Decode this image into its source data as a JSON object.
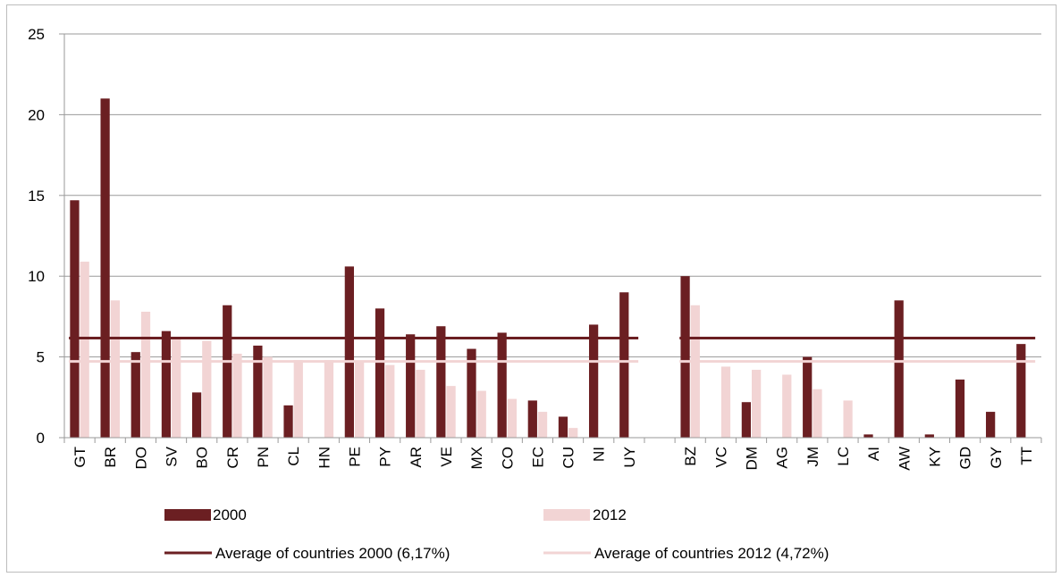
{
  "chart_data": {
    "type": "bar",
    "ylim": [
      0,
      25
    ],
    "yticks": [
      "0",
      "5",
      "10",
      "15",
      "20",
      "25"
    ],
    "grid": true,
    "legend_position": "bottom",
    "categories": [
      "GT",
      "BR",
      "DO",
      "SV",
      "BO",
      "CR",
      "PN",
      "CL",
      "HN",
      "PE",
      "PY",
      "AR",
      "VE",
      "MX",
      "CO",
      "EC",
      "CU",
      "NI",
      "UY",
      "",
      "BZ",
      "VC",
      "DM",
      "AG",
      "JM",
      "LC",
      "AI",
      "AW",
      "KY",
      "GD",
      "GY",
      "TT"
    ],
    "series": [
      {
        "name": "2000",
        "color": "#6b1f22",
        "values": [
          14.7,
          21.0,
          5.3,
          6.6,
          2.8,
          8.2,
          5.7,
          2.0,
          null,
          10.6,
          8.0,
          6.4,
          6.9,
          5.5,
          6.5,
          2.3,
          1.3,
          7.0,
          9.0,
          null,
          10.0,
          null,
          2.2,
          null,
          5.0,
          null,
          0.2,
          8.5,
          0.2,
          3.6,
          1.6,
          5.8
        ]
      },
      {
        "name": "2012",
        "color": "#f2d4d4",
        "values": [
          10.9,
          8.5,
          7.8,
          6.2,
          6.0,
          5.2,
          5.0,
          4.8,
          4.8,
          4.7,
          4.5,
          4.2,
          3.2,
          2.9,
          2.4,
          1.6,
          0.6,
          null,
          null,
          null,
          8.2,
          4.4,
          4.2,
          3.9,
          3.0,
          2.3,
          null,
          null,
          null,
          null,
          null,
          null
        ]
      }
    ],
    "reference_lines": [
      {
        "name": "Average of countries 2000 (6,17%)",
        "value": 6.17,
        "color": "#6b1f22"
      },
      {
        "name": "Average of countries 2012 (4,72%)",
        "value": 4.72,
        "color": "#f2d4d4"
      }
    ]
  }
}
